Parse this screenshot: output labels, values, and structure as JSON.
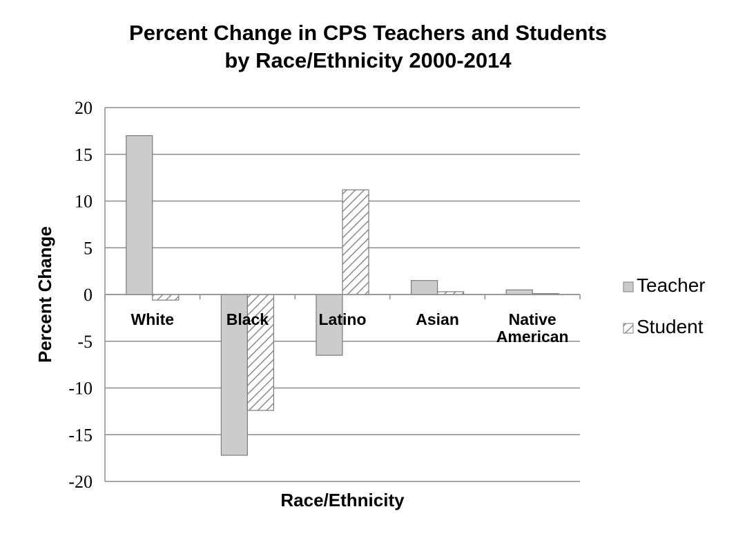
{
  "chart_data": {
    "type": "bar",
    "title_line1": "Percent Change in CPS Teachers and Students",
    "title_line2": "by Race/Ethnicity 2000-2014",
    "xlabel": "Race/Ethnicity",
    "ylabel": "Percent Change",
    "ylim": [
      -20,
      20
    ],
    "yticks": [
      20,
      15,
      10,
      5,
      0,
      -5,
      -10,
      -15,
      -20
    ],
    "categories": [
      [
        "White"
      ],
      [
        "Black"
      ],
      [
        "Latino"
      ],
      [
        "Asian"
      ],
      [
        "Native",
        "American"
      ]
    ],
    "series": [
      {
        "name": "Teacher",
        "values": [
          17.0,
          -17.2,
          -6.5,
          1.5,
          0.5
        ],
        "color": "#cccccc",
        "pattern": "solid"
      },
      {
        "name": "Student",
        "values": [
          -0.6,
          -12.4,
          11.2,
          0.3,
          0.1
        ],
        "color": "#ffffff",
        "pattern": "diagonal-hatch"
      }
    ],
    "grid": true,
    "legend_position": "right"
  }
}
